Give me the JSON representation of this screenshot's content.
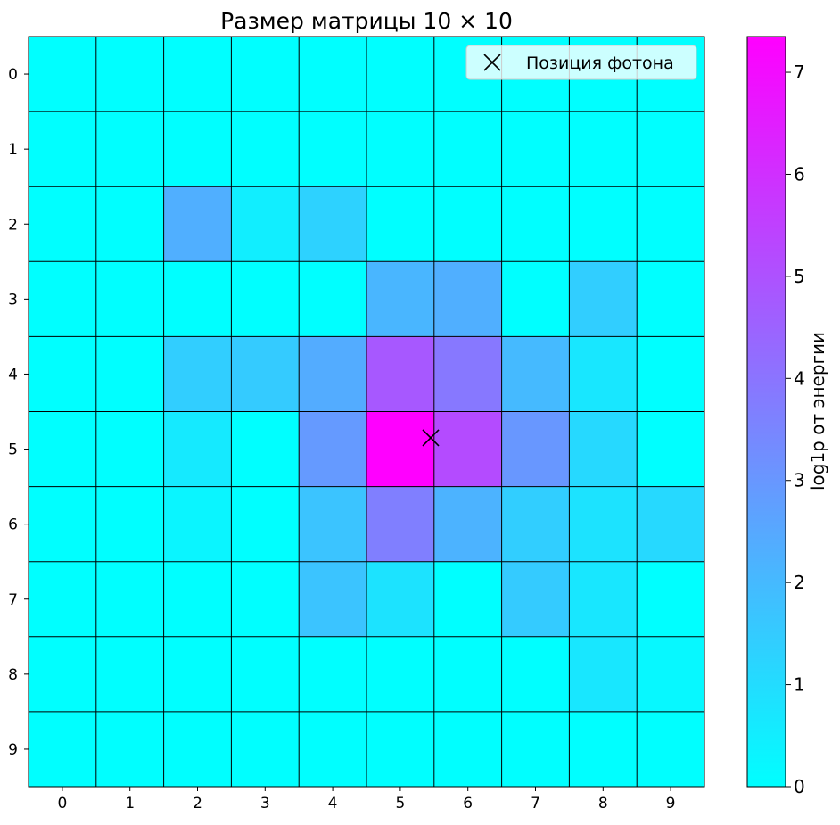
{
  "chart_data": {
    "type": "heatmap",
    "title": "Размер матрицы 10 × 10",
    "colorbar_label": "log1p от энергии",
    "colormap": "cool",
    "vmin": 0,
    "vmax": 7.35,
    "x_ticks": [
      "0",
      "1",
      "2",
      "3",
      "4",
      "5",
      "6",
      "7",
      "8",
      "9"
    ],
    "y_ticks": [
      "0",
      "1",
      "2",
      "3",
      "4",
      "5",
      "6",
      "7",
      "8",
      "9"
    ],
    "colorbar_ticks": [
      0,
      1,
      2,
      3,
      4,
      5,
      6,
      7
    ],
    "grid": true,
    "legend": {
      "label": "Позиция фотона",
      "marker": "x",
      "placement": "top-right"
    },
    "photon_position": {
      "x": 5.45,
      "y": 4.85
    },
    "matrix": [
      [
        0,
        0,
        0,
        0,
        0,
        0,
        0,
        0,
        0,
        0
      ],
      [
        0,
        0,
        0,
        0,
        0,
        0,
        0,
        0,
        0,
        0
      ],
      [
        0,
        0,
        2.3,
        0.5,
        1.3,
        0,
        0,
        0,
        0,
        0
      ],
      [
        0,
        0,
        0,
        0,
        0,
        2.1,
        2.3,
        0,
        1.4,
        0
      ],
      [
        0,
        0,
        1.4,
        1.5,
        2.4,
        4.8,
        3.9,
        2.0,
        0.7,
        0
      ],
      [
        0,
        0,
        0.6,
        0,
        2.9,
        7.35,
        5.2,
        3.0,
        1.1,
        0
      ],
      [
        0,
        0,
        0.3,
        0,
        1.7,
        3.7,
        2.2,
        1.4,
        0.8,
        1.1
      ],
      [
        0,
        0,
        0,
        0,
        1.7,
        0.8,
        0,
        1.5,
        0.7,
        0
      ],
      [
        0,
        0,
        0,
        0,
        0,
        0,
        0,
        0,
        0.7,
        0.2
      ],
      [
        0,
        0,
        0,
        0,
        0,
        0,
        0,
        0,
        0,
        0
      ]
    ]
  }
}
